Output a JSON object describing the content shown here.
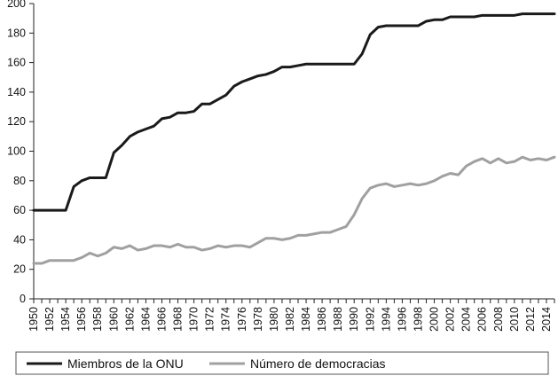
{
  "chart_data": {
    "type": "line",
    "title": "",
    "xlabel": "",
    "ylabel": "",
    "ylim": [
      0,
      200
    ],
    "y_ticks": [
      0,
      20,
      40,
      60,
      80,
      100,
      120,
      140,
      160,
      180,
      200
    ],
    "x": [
      1950,
      1951,
      1952,
      1953,
      1954,
      1955,
      1956,
      1957,
      1958,
      1959,
      1960,
      1961,
      1962,
      1963,
      1964,
      1965,
      1966,
      1967,
      1968,
      1969,
      1970,
      1971,
      1972,
      1973,
      1974,
      1975,
      1976,
      1977,
      1978,
      1979,
      1980,
      1981,
      1982,
      1983,
      1984,
      1985,
      1986,
      1987,
      1988,
      1989,
      1990,
      1991,
      1992,
      1993,
      1994,
      1995,
      1996,
      1997,
      1998,
      1999,
      2000,
      2001,
      2002,
      2003,
      2004,
      2005,
      2006,
      2007,
      2008,
      2009,
      2010,
      2011,
      2012,
      2013,
      2014,
      2015
    ],
    "x_tick_labels": [
      "1950",
      "1952",
      "1954",
      "1956",
      "1958",
      "1960",
      "1962",
      "1964",
      "1966",
      "1968",
      "1970",
      "1972",
      "1974",
      "1976",
      "1978",
      "1980",
      "1982",
      "1984",
      "1986",
      "1988",
      "1990",
      "1992",
      "1994",
      "1996",
      "1998",
      "2000",
      "2002",
      "2004",
      "2006",
      "2008",
      "2010",
      "2012",
      "2014"
    ],
    "grid": false,
    "legend_position": "bottom",
    "series": [
      {
        "name": "Miembros de la ONU",
        "color": "#1a1a1a",
        "values": [
          60,
          60,
          60,
          60,
          60,
          76,
          80,
          82,
          82,
          82,
          99,
          104,
          110,
          113,
          115,
          117,
          122,
          123,
          126,
          126,
          127,
          132,
          132,
          135,
          138,
          144,
          147,
          149,
          151,
          152,
          154,
          157,
          157,
          158,
          159,
          159,
          159,
          159,
          159,
          159,
          159,
          166,
          179,
          184,
          185,
          185,
          185,
          185,
          185,
          188,
          189,
          189,
          191,
          191,
          191,
          191,
          192,
          192,
          192,
          192,
          192,
          193,
          193,
          193,
          193,
          193
        ]
      },
      {
        "name": "Número de democracias",
        "color": "#a0a0a0",
        "values": [
          24,
          24,
          26,
          26,
          26,
          26,
          28,
          31,
          29,
          31,
          35,
          34,
          36,
          33,
          34,
          36,
          36,
          35,
          37,
          35,
          35,
          33,
          34,
          36,
          35,
          36,
          36,
          35,
          38,
          41,
          41,
          40,
          41,
          43,
          43,
          44,
          45,
          45,
          47,
          49,
          57,
          68,
          75,
          77,
          78,
          76,
          77,
          78,
          77,
          78,
          80,
          83,
          85,
          84,
          90,
          93,
          95,
          92,
          95,
          92,
          93,
          96,
          94,
          95,
          94,
          96
        ]
      }
    ]
  }
}
